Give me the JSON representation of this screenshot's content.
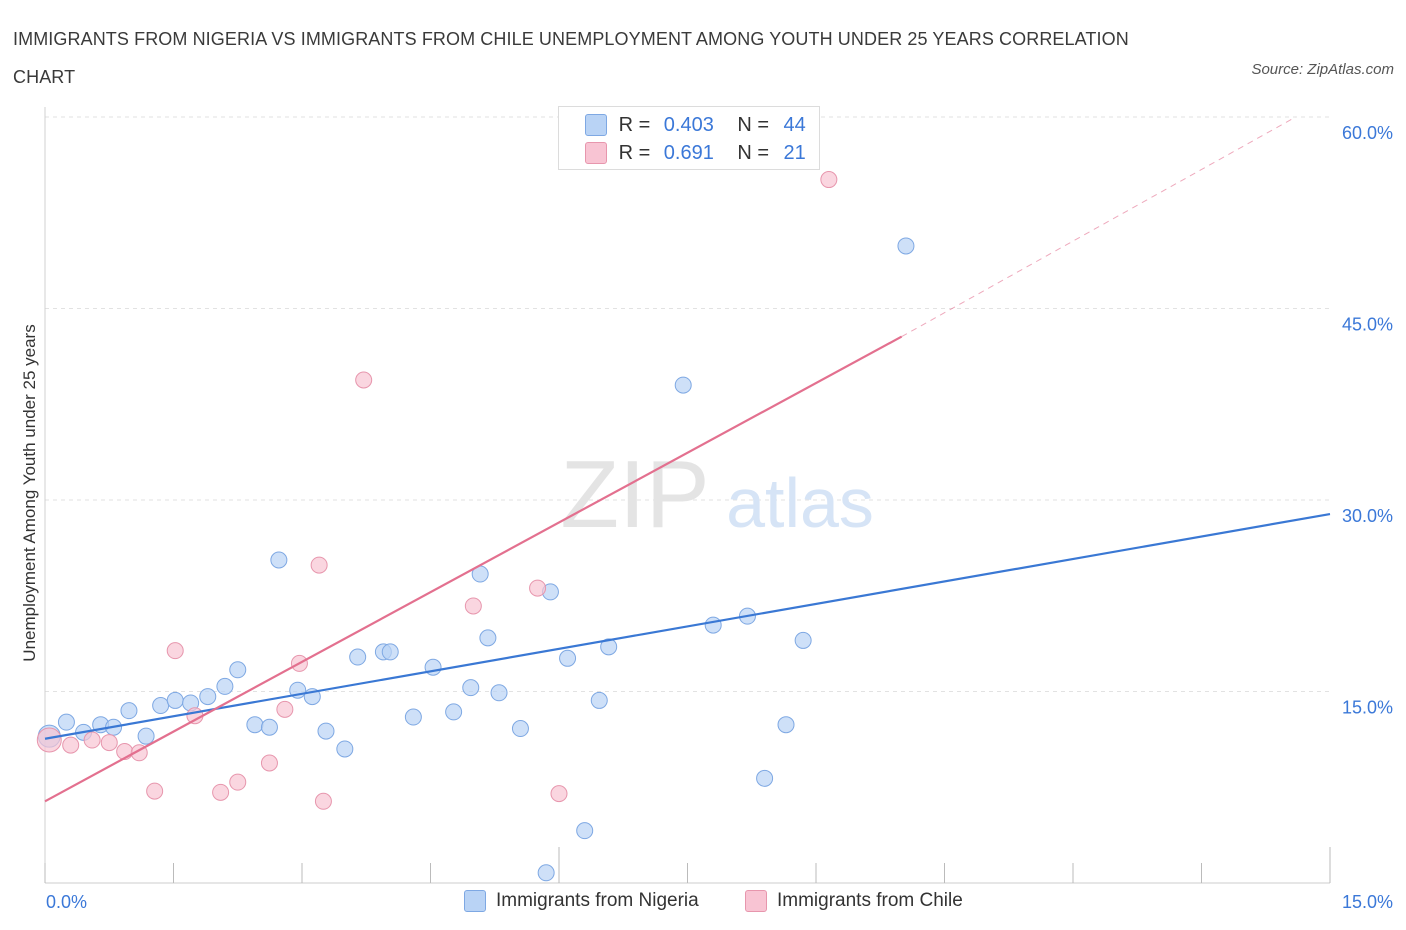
{
  "title": "IMMIGRANTS FROM NIGERIA VS IMMIGRANTS FROM CHILE UNEMPLOYMENT AMONG YOUTH UNDER 25 YEARS CORRELATION CHART",
  "source": "Source: ZipAtlas.com",
  "watermark": {
    "zip": "ZIP",
    "atlas": "atlas"
  },
  "colors": {
    "nigeria": "#3a78d4",
    "nigeria_fill": "#b9d3f5",
    "chile": "#e3708f",
    "chile_fill": "#f8c4d3",
    "axis_text": "#3b78d8"
  },
  "legend_top": [
    {
      "r_label": "R =",
      "r_value": "0.403",
      "n_label": "N =",
      "n_value": "44"
    },
    {
      "r_label": "R =",
      "r_value": "0.691",
      "n_label": "N =",
      "n_value": "21"
    }
  ],
  "legend_bottom": [
    "Immigrants from Nigeria",
    "Immigrants from Chile"
  ],
  "chart_data": {
    "type": "scatter",
    "title": "IMMIGRANTS FROM NIGERIA VS IMMIGRANTS FROM CHILE UNEMPLOYMENT AMONG YOUTH UNDER 25 YEARS CORRELATION CHART",
    "xlabel": "",
    "ylabel": "Unemployment Among Youth under 25 years",
    "xlim": [
      0,
      15
    ],
    "ylim": [
      0,
      60
    ],
    "x_tick_labels": [
      "0.0%",
      "15.0%"
    ],
    "y_ticks": [
      15,
      30,
      45,
      60
    ],
    "y_tick_labels": [
      "15.0%",
      "30.0%",
      "45.0%",
      "60.0%"
    ],
    "grid": true,
    "legend_position": "top-center",
    "series": [
      {
        "name": "Immigrants from Nigeria",
        "points": [
          [
            0.05,
            11.5
          ],
          [
            0.25,
            12.6
          ],
          [
            0.45,
            11.8
          ],
          [
            0.65,
            12.4
          ],
          [
            0.8,
            12.2
          ],
          [
            0.98,
            13.5
          ],
          [
            1.18,
            11.5
          ],
          [
            1.35,
            13.9
          ],
          [
            1.52,
            14.3
          ],
          [
            1.7,
            14.1
          ],
          [
            1.9,
            14.6
          ],
          [
            2.1,
            15.4
          ],
          [
            2.25,
            16.7
          ],
          [
            2.45,
            12.4
          ],
          [
            2.62,
            12.2
          ],
          [
            2.73,
            25.3
          ],
          [
            2.95,
            15.1
          ],
          [
            3.12,
            14.6
          ],
          [
            3.28,
            11.9
          ],
          [
            3.5,
            10.5
          ],
          [
            3.65,
            17.7
          ],
          [
            3.95,
            18.1
          ],
          [
            4.03,
            18.1
          ],
          [
            4.3,
            13.0
          ],
          [
            4.53,
            16.9
          ],
          [
            4.77,
            13.4
          ],
          [
            4.97,
            15.3
          ],
          [
            5.08,
            24.2
          ],
          [
            5.17,
            19.2
          ],
          [
            5.3,
            14.9
          ],
          [
            5.55,
            12.1
          ],
          [
            5.9,
            22.8
          ],
          [
            5.85,
            0.8
          ],
          [
            6.1,
            17.6
          ],
          [
            6.3,
            4.1
          ],
          [
            6.47,
            14.3
          ],
          [
            6.58,
            18.5
          ],
          [
            7.45,
            39.0
          ],
          [
            7.8,
            20.2
          ],
          [
            8.2,
            20.9
          ],
          [
            8.4,
            8.2
          ],
          [
            8.65,
            12.4
          ],
          [
            8.85,
            19.0
          ],
          [
            10.05,
            49.9
          ]
        ]
      },
      {
        "name": "Immigrants from Chile",
        "points": [
          [
            0.05,
            11.2
          ],
          [
            0.3,
            10.8
          ],
          [
            0.55,
            11.2
          ],
          [
            0.75,
            11.0
          ],
          [
            0.93,
            10.3
          ],
          [
            1.1,
            10.2
          ],
          [
            1.28,
            7.2
          ],
          [
            1.52,
            18.2
          ],
          [
            1.75,
            13.1
          ],
          [
            2.05,
            7.1
          ],
          [
            2.25,
            7.9
          ],
          [
            2.62,
            9.4
          ],
          [
            2.8,
            13.6
          ],
          [
            2.97,
            17.2
          ],
          [
            3.2,
            24.9
          ],
          [
            3.25,
            6.4
          ],
          [
            3.72,
            39.4
          ],
          [
            5.0,
            21.7
          ],
          [
            5.75,
            23.1
          ],
          [
            6.0,
            7.0
          ],
          [
            9.15,
            55.1
          ]
        ]
      }
    ],
    "trendlines": [
      {
        "series": "Immigrants from Nigeria",
        "x": [
          0,
          15
        ],
        "y": [
          11.3,
          28.9
        ]
      },
      {
        "series": "Immigrants from Chile",
        "x": [
          0,
          10
        ],
        "y": [
          6.4,
          42.8
        ],
        "dashed_extension": {
          "x": [
            10,
            14.6
          ],
          "y": [
            42.8,
            60
          ]
        }
      }
    ]
  }
}
